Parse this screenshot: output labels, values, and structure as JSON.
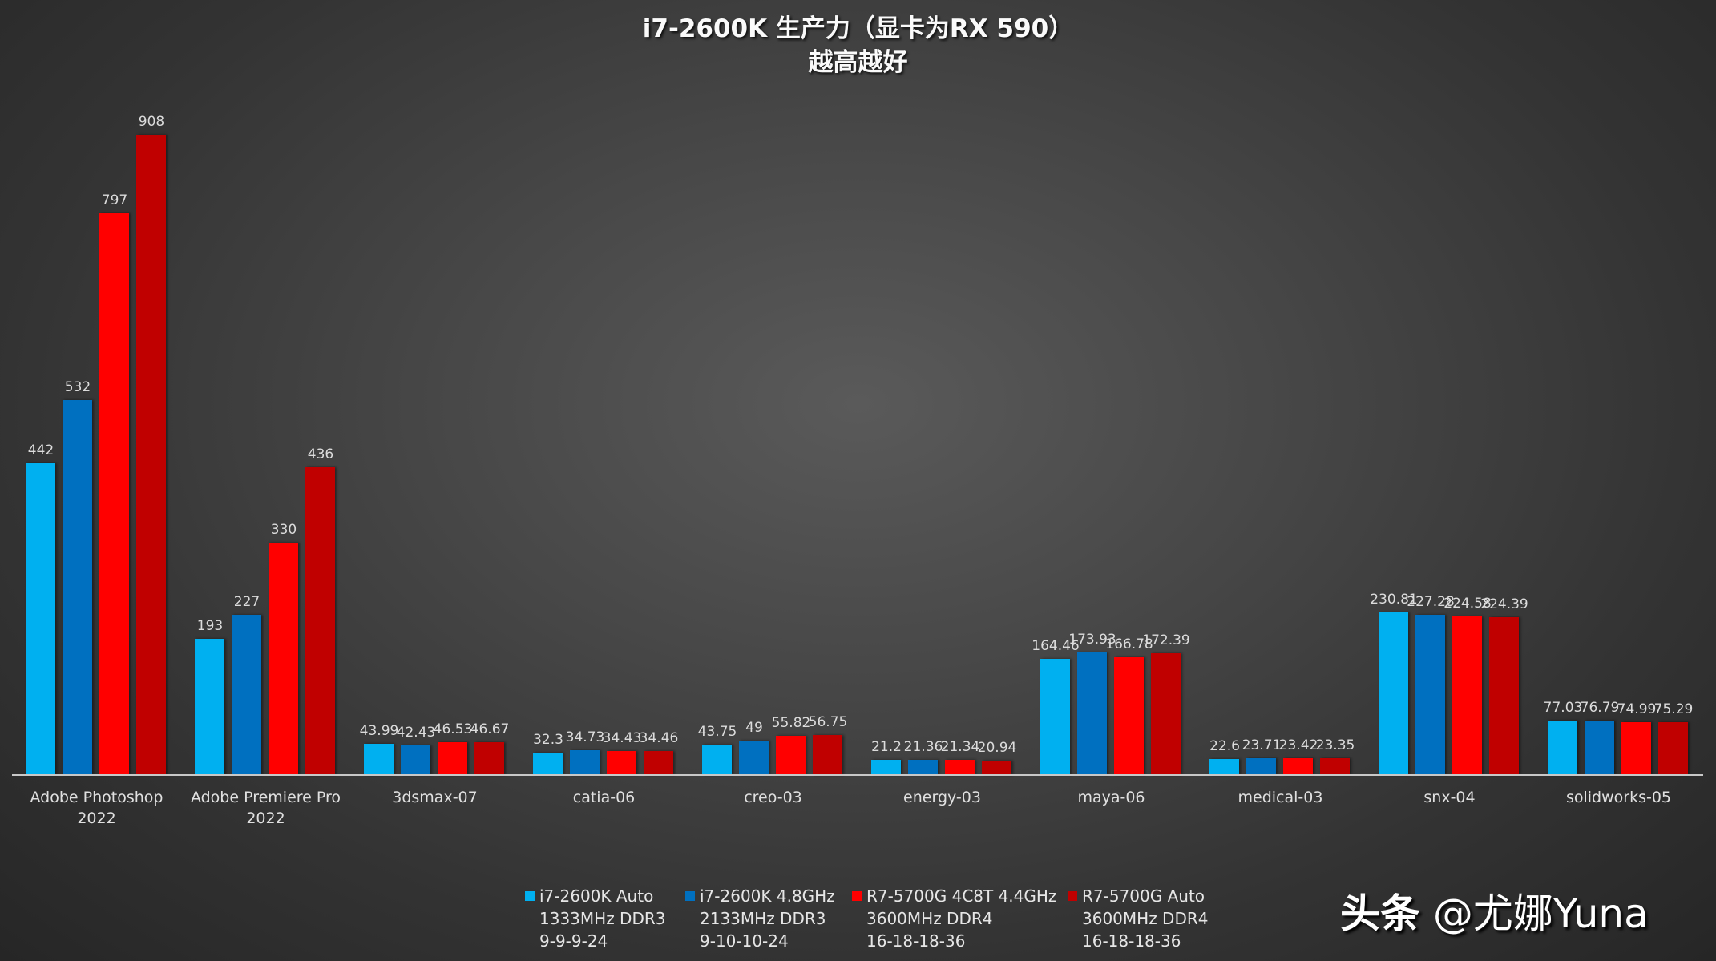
{
  "chart_data": {
    "type": "bar",
    "title": "i7-2600K 生产力（显卡为RX 590）",
    "subtitle": "越高越好",
    "xlabel": "",
    "ylabel": "",
    "ylim": [
      0,
      990
    ],
    "grid": false,
    "legend_position": "bottom",
    "categories": [
      "Adobe Photoshop 2022",
      "Adobe Premiere Pro 2022",
      "3dsmax-07",
      "catia-06",
      "creo-03",
      "energy-03",
      "maya-06",
      "medical-03",
      "snx-04",
      "solidworks-05"
    ],
    "series": [
      {
        "name": "i7-2600K Auto 1333MHz DDR3 9-9-9-24",
        "color": "#00b0f0",
        "values": [
          442,
          193,
          43.99,
          32.3,
          43.75,
          21.2,
          164.46,
          22.6,
          230.81,
          77.03
        ]
      },
      {
        "name": "i7-2600K 4.8GHz 2133MHz DDR3 9-10-10-24",
        "color": "#0070c0",
        "values": [
          532,
          227,
          42.43,
          34.73,
          49,
          21.36,
          173.93,
          23.71,
          227.28,
          76.79
        ]
      },
      {
        "name": "R7-5700G 4C8T 4.4GHz 3600MHz DDR4 16-18-18-36",
        "color": "#ff0000",
        "values": [
          797,
          330,
          46.53,
          34.43,
          55.82,
          21.34,
          166.78,
          23.42,
          224.58,
          74.99
        ]
      },
      {
        "name": "R7-5700G Auto 3600MHz DDR4 16-18-18-36",
        "color": "#c00000",
        "values": [
          908,
          436,
          46.67,
          34.46,
          56.75,
          20.94,
          172.39,
          23.35,
          224.39,
          75.29
        ]
      }
    ]
  },
  "title": {
    "line1": "i7-2600K 生产力（显卡为RX 590）",
    "line2": "越高越好"
  },
  "categories_display": [
    [
      "Adobe Photoshop 2022"
    ],
    [
      "Adobe Premiere Pro",
      "2022"
    ],
    [
      "3dsmax-07"
    ],
    [
      "catia-06"
    ],
    [
      "creo-03"
    ],
    [
      "energy-03"
    ],
    [
      "maya-06"
    ],
    [
      "medical-03"
    ],
    [
      "snx-04"
    ],
    [
      "solidworks-05"
    ]
  ],
  "legend": [
    {
      "color": "#00b0f0",
      "lines": [
        "i7-2600K Auto",
        "1333MHz DDR3",
        "9-9-9-24"
      ]
    },
    {
      "color": "#0070c0",
      "lines": [
        "i7-2600K 4.8GHz",
        "2133MHz DDR3",
        "9-10-10-24"
      ]
    },
    {
      "color": "#ff0000",
      "lines": [
        "R7-5700G 4C8T 4.4GHz",
        "3600MHz DDR4",
        "16-18-18-36"
      ]
    },
    {
      "color": "#c00000",
      "lines": [
        "R7-5700G Auto",
        "3600MHz DDR4",
        "16-18-18-36"
      ]
    }
  ],
  "watermark": {
    "platform": "头条",
    "handle": "@尤娜Yuna"
  }
}
